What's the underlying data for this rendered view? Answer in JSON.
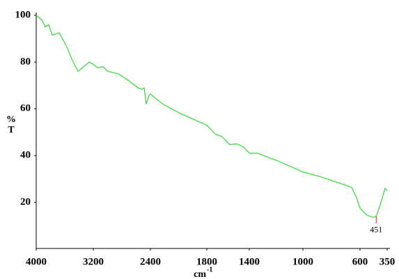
{
  "chart_data": {
    "type": "line",
    "x_label": {
      "base": "cm",
      "sup": "-1"
    },
    "y_label_lines": [
      "%",
      "T"
    ],
    "xlim": [
      4000,
      350
    ],
    "xticks": [
      4000,
      3200,
      2400,
      1800,
      1400,
      1000,
      600,
      350
    ],
    "ylim": [
      0,
      100
    ],
    "yticks": [
      20,
      40,
      60,
      80,
      100
    ],
    "color": "#3ddc3d",
    "x": [
      4000,
      3922,
      3873,
      3824,
      3776,
      3727,
      3678,
      3580,
      3483,
      3415,
      3337,
      3259,
      3200,
      3141,
      3063,
      2995,
      2849,
      2702,
      2576,
      2517,
      2488,
      2459,
      2429,
      2400,
      2363,
      2267,
      2081,
      1800,
      1715,
      1662,
      1583,
      1518,
      1452,
      1400,
      1338,
      1182,
      1000,
      878,
      732,
      659,
      624,
      600,
      536,
      478,
      451,
      414,
      369,
      350
    ],
    "values": [
      100,
      98,
      95,
      96,
      91.5,
      92,
      92.5,
      87,
      80,
      76,
      78,
      80,
      79,
      77.6,
      78,
      76,
      75,
      72,
      69,
      68.4,
      69,
      62,
      65,
      66.4,
      65,
      62,
      58,
      53,
      49,
      48.3,
      44.7,
      45,
      43.6,
      41,
      41,
      37.6,
      33,
      31,
      28,
      26.4,
      22,
      17.5,
      14.5,
      13.6,
      14,
      19,
      26,
      25
    ],
    "annotations": [
      {
        "x": 451,
        "label": "451",
        "color": "#e02020"
      }
    ]
  }
}
